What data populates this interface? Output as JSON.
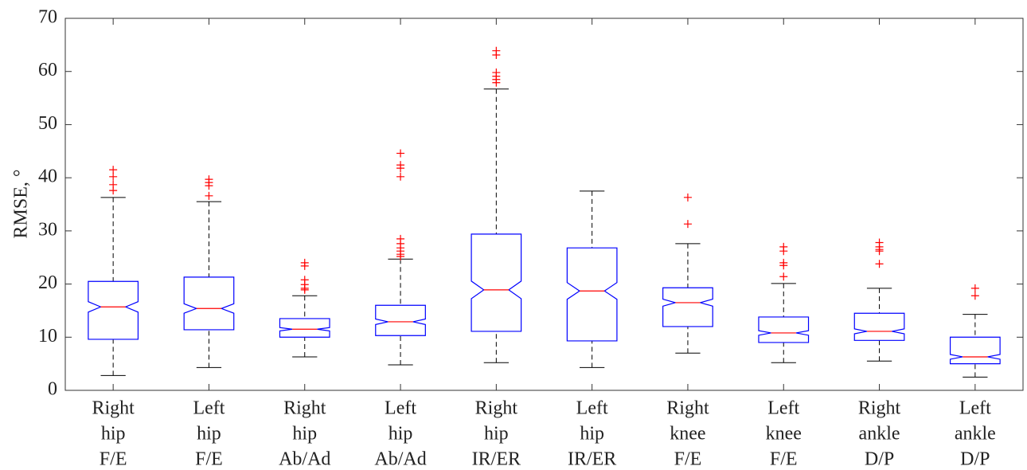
{
  "chart_data": {
    "type": "box",
    "ylabel": "RMSE, °",
    "categories": [
      [
        "Right",
        "hip",
        "F/E"
      ],
      [
        "Left",
        "hip",
        "F/E"
      ],
      [
        "Right",
        "hip",
        "Ab/Ad"
      ],
      [
        "Left",
        "hip",
        "Ab/Ad"
      ],
      [
        "Right",
        "hip",
        "IR/ER"
      ],
      [
        "Left",
        "hip",
        "IR/ER"
      ],
      [
        "Right",
        "knee",
        "F/E"
      ],
      [
        "Left",
        "knee",
        "F/E"
      ],
      [
        "Right",
        "ankle",
        "D/P"
      ],
      [
        "Left",
        "ankle",
        "D/P"
      ]
    ],
    "boxes": [
      {
        "whislo": 2.8,
        "q1": 9.6,
        "med": 15.7,
        "q3": 20.5,
        "whishi": 36.3,
        "fliers": [
          41.5,
          40.2,
          38.7,
          37.6
        ]
      },
      {
        "whislo": 4.3,
        "q1": 11.4,
        "med": 15.4,
        "q3": 21.3,
        "whishi": 35.5,
        "fliers": [
          39.7,
          39.1,
          38.5,
          36.6
        ]
      },
      {
        "whislo": 6.3,
        "q1": 10.0,
        "med": 11.5,
        "q3": 13.5,
        "whishi": 17.8,
        "fliers": [
          24.0,
          23.4,
          20.8,
          19.9,
          19.2,
          18.9
        ]
      },
      {
        "whislo": 4.8,
        "q1": 10.3,
        "med": 12.9,
        "q3": 16.0,
        "whishi": 24.7,
        "fliers": [
          44.6,
          42.4,
          41.8,
          40.2,
          28.5,
          27.6,
          26.8,
          26.2,
          25.6,
          25.2
        ]
      },
      {
        "whislo": 5.2,
        "q1": 11.1,
        "med": 18.9,
        "q3": 29.4,
        "whishi": 56.7,
        "fliers": [
          63.9,
          63.1,
          59.8,
          59.1,
          58.5,
          57.9
        ]
      },
      {
        "whislo": 4.3,
        "q1": 9.3,
        "med": 18.7,
        "q3": 26.8,
        "whishi": 37.5,
        "fliers": []
      },
      {
        "whislo": 7.0,
        "q1": 12.0,
        "med": 16.5,
        "q3": 19.3,
        "whishi": 27.6,
        "fliers": [
          36.3,
          31.3
        ]
      },
      {
        "whislo": 5.2,
        "q1": 9.0,
        "med": 10.8,
        "q3": 13.8,
        "whishi": 20.1,
        "fliers": [
          27.0,
          26.2,
          24.0,
          23.5,
          21.4
        ]
      },
      {
        "whislo": 5.5,
        "q1": 9.4,
        "med": 11.1,
        "q3": 14.5,
        "whishi": 19.2,
        "fliers": [
          27.8,
          27.0,
          26.5,
          26.2,
          23.8
        ]
      },
      {
        "whislo": 2.5,
        "q1": 5.0,
        "med": 6.3,
        "q3": 10.0,
        "whishi": 14.3,
        "fliers": [
          19.2,
          17.8
        ]
      }
    ],
    "box_color": "#0000ff",
    "median_color": "#ff0000",
    "whisker_color": "#000000",
    "flier_color": "#ff0000",
    "ylim": [
      0,
      70
    ],
    "yticks": [
      0,
      10,
      20,
      30,
      40,
      50,
      60,
      70
    ]
  }
}
